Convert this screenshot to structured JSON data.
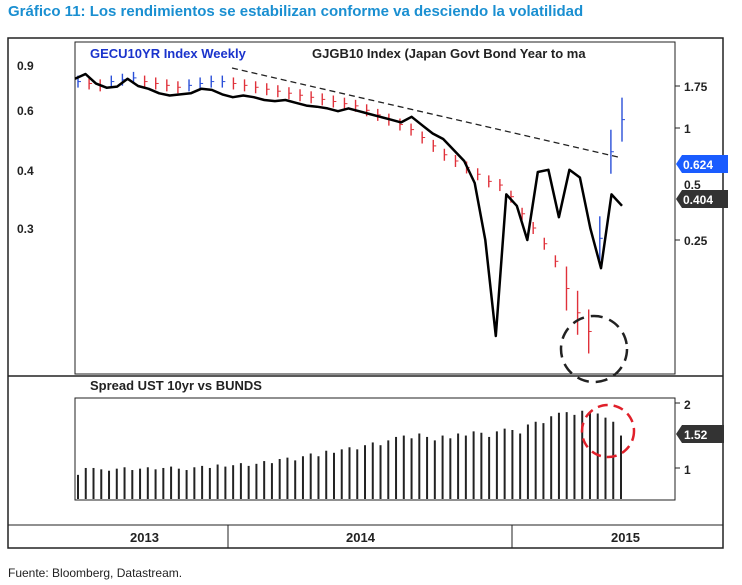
{
  "title": "Gráfico 11: Los rendimientos se estabilizan conforme va desciendo la volatilidad",
  "source": "Fuente: Bloomberg, Datastream.",
  "colors": {
    "title": "#1a8fd1",
    "bar_up": "#2a4fd8",
    "bar_down": "#e0313a",
    "line": "#000000",
    "badge_blue": "#1a5cff",
    "badge_dark": "#333333",
    "circle_black": "#222222",
    "circle_red": "#e0202a"
  },
  "chart_data": [
    {
      "type": "line",
      "legend": {
        "series1": "GECU10YR Index Weekly",
        "series2": "GJGB10 Index (Japan Govt Bond Year to ma"
      },
      "left_axis_ticks": [
        "0.9",
        "0.6",
        "0.4",
        "0.3"
      ],
      "right_axis_ticks": [
        "1.75",
        "1",
        "0.5",
        "0.25"
      ],
      "x_labels": [
        "2013",
        "2014",
        "2015"
      ],
      "badges": {
        "gecu_last": "0.624",
        "gjgb_last": "0.404"
      },
      "series": [
        {
          "name": "GECU10YR Index Weekly",
          "style": "ohlc-bars",
          "values": [
            0.8,
            0.79,
            0.78,
            0.8,
            0.81,
            0.82,
            0.8,
            0.79,
            0.78,
            0.77,
            0.78,
            0.79,
            0.8,
            0.8,
            0.79,
            0.78,
            0.77,
            0.76,
            0.75,
            0.74,
            0.73,
            0.72,
            0.71,
            0.7,
            0.69,
            0.68,
            0.66,
            0.64,
            0.62,
            0.6,
            0.58,
            0.55,
            0.52,
            0.49,
            0.47,
            0.45,
            0.43,
            0.41,
            0.4,
            0.37,
            0.33,
            0.3,
            0.27,
            0.24,
            0.2,
            0.17,
            0.15,
            0.28,
            0.5,
            0.62
          ]
        },
        {
          "name": "GJGB10 Index (Japan Govt Bond Year to ma",
          "style": "line",
          "values": [
            1.78,
            1.8,
            1.76,
            1.72,
            1.74,
            1.78,
            1.75,
            1.7,
            1.62,
            1.58,
            1.6,
            1.62,
            1.7,
            1.68,
            1.6,
            1.55,
            1.58,
            1.55,
            1.5,
            1.48,
            1.5,
            1.45,
            1.4,
            1.38,
            1.35,
            1.3,
            1.35,
            1.3,
            1.25,
            1.2,
            1.15,
            1.1,
            1.2,
            1.05,
            0.95,
            0.9,
            0.8,
            0.7,
            0.5,
            0.25,
            0.08,
            0.45,
            0.4,
            0.25,
            0.6,
            0.62,
            0.35,
            0.62,
            0.55,
            0.3,
            0.2,
            0.45,
            0.4
          ]
        }
      ],
      "trendline": "dashed",
      "annotation": "circle-black"
    },
    {
      "type": "bar",
      "title": "Spread UST 10yr vs BUNDS",
      "right_axis_ticks": [
        "2",
        "1"
      ],
      "ylim": [
        0.6,
        2.05
      ],
      "badge": "1.52",
      "values": [
        0.95,
        1.05,
        1.05,
        1.03,
        1.01,
        1.04,
        1.06,
        1.02,
        1.04,
        1.06,
        1.03,
        1.05,
        1.07,
        1.04,
        1.02,
        1.06,
        1.08,
        1.05,
        1.1,
        1.07,
        1.09,
        1.12,
        1.08,
        1.11,
        1.15,
        1.12,
        1.18,
        1.2,
        1.16,
        1.22,
        1.26,
        1.22,
        1.3,
        1.27,
        1.32,
        1.35,
        1.32,
        1.38,
        1.42,
        1.38,
        1.45,
        1.5,
        1.52,
        1.48,
        1.55,
        1.5,
        1.45,
        1.52,
        1.48,
        1.55,
        1.52,
        1.58,
        1.56,
        1.5,
        1.58,
        1.62,
        1.6,
        1.55,
        1.68,
        1.72,
        1.7,
        1.8,
        1.85,
        1.86,
        1.82,
        1.88,
        1.85,
        1.84,
        1.78,
        1.72,
        1.52
      ],
      "annotation": "circle-red"
    }
  ]
}
